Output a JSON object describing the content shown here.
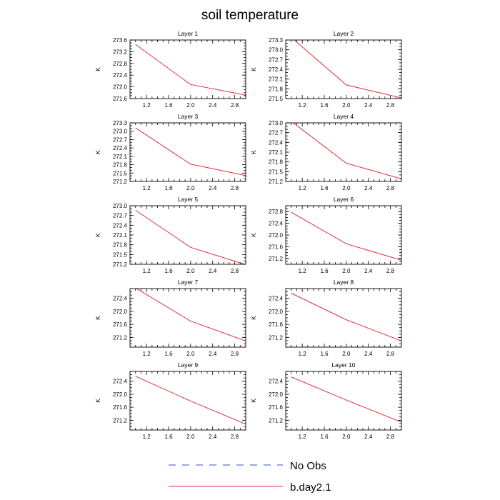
{
  "title": "soil temperature",
  "legend": [
    {
      "label": "No Obs",
      "color": "#3355cc",
      "style": "dashed"
    },
    {
      "label": "b.day2.1",
      "color": "#e0303a",
      "style": "solid"
    }
  ],
  "chart_data": [
    {
      "type": "line",
      "title": "Layer 1",
      "ylabel": "K",
      "xlim": [
        0.9,
        3.0
      ],
      "ylim": [
        271.6,
        273.6
      ],
      "xticks": [
        "1.2",
        "1.6",
        "2.0",
        "2.4",
        "2.8"
      ],
      "yticks": [
        "271.6",
        "272.0",
        "272.4",
        "272.8",
        "273.2",
        "273.6"
      ],
      "series": [
        {
          "name": "b.day2.1",
          "x": [
            1,
            2,
            3
          ],
          "y": [
            273.45,
            272.08,
            271.72
          ]
        }
      ]
    },
    {
      "type": "line",
      "title": "Layer 2",
      "ylabel": "K",
      "xlim": [
        0.9,
        3.0
      ],
      "ylim": [
        271.5,
        273.3
      ],
      "xticks": [
        "1.2",
        "1.6",
        "2.0",
        "2.4",
        "2.8"
      ],
      "yticks": [
        "271.5",
        "271.8",
        "272.1",
        "272.4",
        "272.7",
        "273.0",
        "273.3"
      ],
      "series": [
        {
          "name": "b.day2.1",
          "x": [
            1,
            2,
            3
          ],
          "y": [
            273.38,
            271.92,
            271.52
          ]
        }
      ]
    },
    {
      "type": "line",
      "title": "Layer 3",
      "ylabel": "K",
      "xlim": [
        0.9,
        3.0
      ],
      "ylim": [
        271.2,
        273.3
      ],
      "xticks": [
        "1.2",
        "1.6",
        "2.0",
        "2.4",
        "2.8"
      ],
      "yticks": [
        "271.2",
        "271.5",
        "271.8",
        "272.1",
        "272.4",
        "272.7",
        "273.0",
        "273.3"
      ],
      "series": [
        {
          "name": "b.day2.1",
          "x": [
            1,
            2,
            3
          ],
          "y": [
            273.12,
            271.82,
            271.41
          ]
        }
      ]
    },
    {
      "type": "line",
      "title": "Layer 4",
      "ylabel": "K",
      "xlim": [
        0.9,
        3.0
      ],
      "ylim": [
        271.2,
        273.0
      ],
      "xticks": [
        "1.2",
        "1.6",
        "2.0",
        "2.4",
        "2.8"
      ],
      "yticks": [
        "271.2",
        "271.5",
        "271.8",
        "272.1",
        "272.4",
        "272.7",
        "273.0"
      ],
      "series": [
        {
          "name": "b.day2.1",
          "x": [
            1,
            2,
            3
          ],
          "y": [
            273.05,
            271.76,
            271.28
          ]
        }
      ]
    },
    {
      "type": "line",
      "title": "Layer 5",
      "ylabel": "K",
      "xlim": [
        0.9,
        3.0
      ],
      "ylim": [
        271.2,
        273.0
      ],
      "xticks": [
        "1.2",
        "1.6",
        "2.0",
        "2.4",
        "2.8"
      ],
      "yticks": [
        "271.2",
        "271.5",
        "271.8",
        "272.1",
        "272.4",
        "272.7",
        "273.0"
      ],
      "series": [
        {
          "name": "b.day2.1",
          "x": [
            1,
            2,
            3
          ],
          "y": [
            272.86,
            271.72,
            271.19
          ]
        }
      ]
    },
    {
      "type": "line",
      "title": "Layer 6",
      "ylabel": "K",
      "xlim": [
        0.9,
        3.0
      ],
      "ylim": [
        271.0,
        273.0
      ],
      "xticks": [
        "1.2",
        "1.6",
        "2.0",
        "2.4",
        "2.8"
      ],
      "yticks": [
        "271.2",
        "271.6",
        "272.0",
        "272.4",
        "272.8"
      ],
      "series": [
        {
          "name": "b.day2.1",
          "x": [
            1,
            2,
            3
          ],
          "y": [
            272.78,
            271.7,
            271.14
          ]
        }
      ]
    },
    {
      "type": "line",
      "title": "Layer 7",
      "ylabel": "K",
      "xlim": [
        0.9,
        3.0
      ],
      "ylim": [
        270.9,
        272.7
      ],
      "xticks": [
        "1.2",
        "1.6",
        "2.0",
        "2.4",
        "2.8"
      ],
      "yticks": [
        "271.2",
        "271.6",
        "272.0",
        "272.4"
      ],
      "series": [
        {
          "name": "b.day2.1",
          "x": [
            1,
            2,
            3
          ],
          "y": [
            272.72,
            271.7,
            271.09
          ]
        }
      ]
    },
    {
      "type": "line",
      "title": "Layer 8",
      "ylabel": "K",
      "xlim": [
        0.9,
        3.0
      ],
      "ylim": [
        270.9,
        272.7
      ],
      "xticks": [
        "1.2",
        "1.6",
        "2.0",
        "2.4",
        "2.8"
      ],
      "yticks": [
        "271.2",
        "271.6",
        "272.0",
        "272.4"
      ],
      "series": [
        {
          "name": "b.day2.1",
          "x": [
            1,
            2,
            3
          ],
          "y": [
            272.56,
            271.74,
            271.09
          ]
        }
      ]
    },
    {
      "type": "line",
      "title": "Layer 9",
      "ylabel": "K",
      "xlim": [
        0.9,
        3.0
      ],
      "ylim": [
        270.9,
        272.7
      ],
      "xticks": [
        "1.2",
        "1.6",
        "2.0",
        "2.4",
        "2.8"
      ],
      "yticks": [
        "271.2",
        "271.6",
        "272.0",
        "272.4"
      ],
      "series": [
        {
          "name": "b.day2.1",
          "x": [
            1,
            2,
            3
          ],
          "y": [
            272.55,
            271.79,
            271.08
          ]
        }
      ]
    },
    {
      "type": "line",
      "title": "Layer 10",
      "ylabel": "K",
      "xlim": [
        0.9,
        3.0
      ],
      "ylim": [
        270.9,
        272.7
      ],
      "xticks": [
        "1.2",
        "1.6",
        "2.0",
        "2.4",
        "2.8"
      ],
      "yticks": [
        "271.2",
        "271.6",
        "272.0",
        "272.4"
      ],
      "series": [
        {
          "name": "b.day2.1",
          "x": [
            1,
            2,
            3
          ],
          "y": [
            272.53,
            271.82,
            271.14
          ]
        }
      ]
    }
  ]
}
